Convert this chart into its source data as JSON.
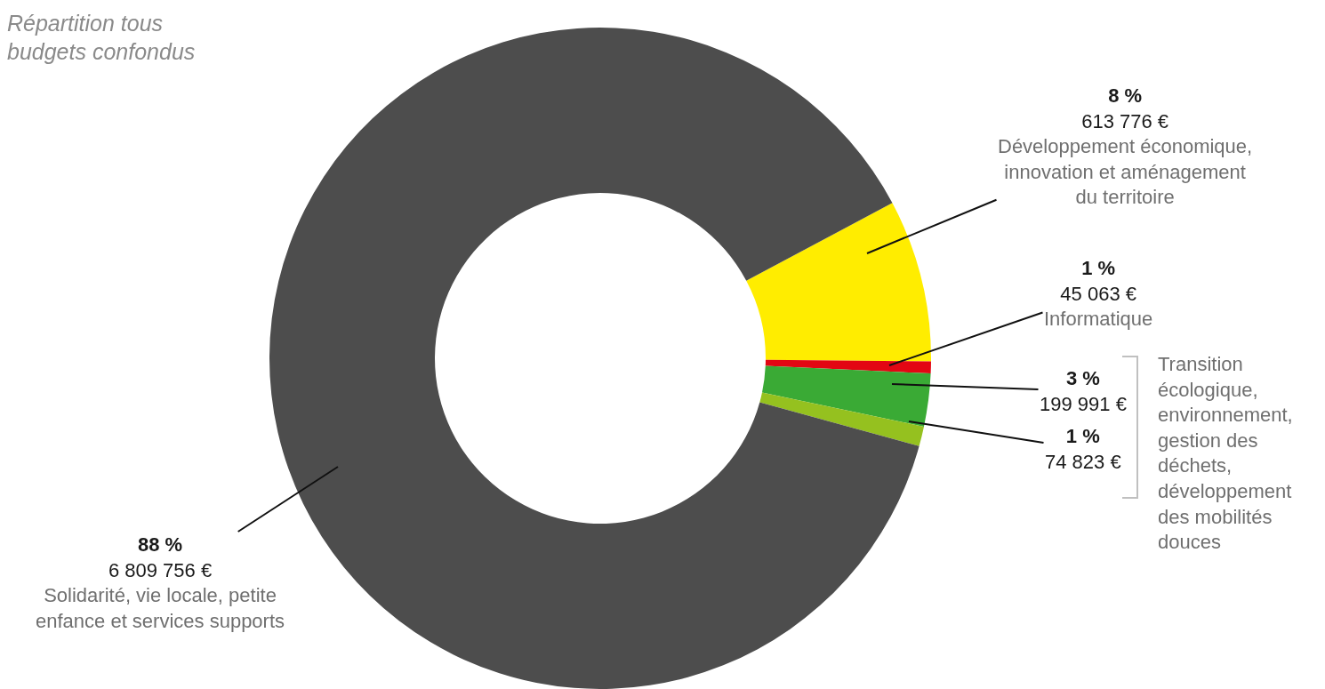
{
  "chart_data": {
    "type": "donut",
    "title": "Répartition tous\nbudgets confondus",
    "categories": [
      "Développement économique,\ninnovation et aménagement\ndu territoire",
      "Informatique",
      null,
      null,
      "Solidarité, vie locale, petite\nenfance et services supports"
    ],
    "values": [
      613776,
      45063,
      199991,
      74823,
      6809756
    ],
    "value_labels": [
      "8 %\n613 776 €",
      "1 %\n45 063 €",
      "3 %\n199 991 €",
      "1 %\n74 823 €",
      "88 %\n6 809 756 €"
    ],
    "colors": [
      "#ffed00",
      "#e30613",
      "#3aaa35",
      "#95c11f",
      "#4d4d4d"
    ],
    "annotations": [
      "Transition\nécologique,\nenvironnement,\ngestion des\ndéchets,\ndéveloppement\ndes mobilités\ndouces"
    ]
  }
}
